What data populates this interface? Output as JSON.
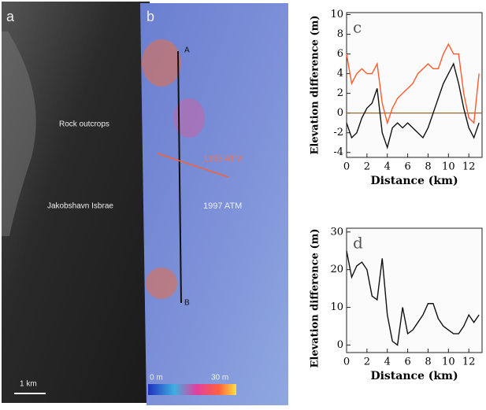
{
  "images": {
    "panel_a": {
      "label": "a",
      "annotations": [
        "Rock outcrops",
        "Jakobshavn Isbrae"
      ],
      "scale_bar": "1 km"
    },
    "panel_b": {
      "label": "b",
      "annotations": [
        "1995 ATM",
        "1997 ATM"
      ],
      "points": [
        "A",
        "B"
      ],
      "colorbar": [
        "0 m",
        "30 m"
      ]
    }
  },
  "chart_data": [
    {
      "type": "line",
      "panel_label": "c",
      "xlabel": "Distance (km)",
      "ylabel": "Elevation difference (m)",
      "x": [
        0,
        0.5,
        1,
        1.5,
        2,
        2.5,
        3,
        3.5,
        4,
        4.5,
        5,
        5.5,
        6,
        6.5,
        7,
        7.5,
        8,
        8.5,
        9,
        9.5,
        10,
        10.5,
        11,
        11.5,
        12,
        12.5,
        13
      ],
      "series": [
        {
          "color": "#ff5a2a",
          "values": [
            6,
            3,
            4,
            4.5,
            4,
            4,
            5,
            1,
            -1,
            0.5,
            1.5,
            2,
            2.5,
            3,
            4,
            4.5,
            5,
            4.5,
            4.5,
            6,
            7,
            6,
            6,
            2,
            -0.5,
            -1,
            4
          ]
        },
        {
          "color": "#111111",
          "values": [
            -1,
            -2.5,
            -2,
            -0.5,
            0.5,
            1,
            2.5,
            -2,
            -3.5,
            -1.5,
            -1,
            -1.5,
            -1,
            -1.5,
            -2,
            -2.5,
            -1.5,
            0,
            1.5,
            3,
            4,
            5,
            3,
            0.5,
            -1.5,
            -2.5,
            -1
          ]
        }
      ],
      "reference_line": 0,
      "xlim": [
        0,
        13.3
      ],
      "xticks": [
        0,
        2,
        4,
        6,
        8,
        10,
        12
      ],
      "ylim": [
        -4.5,
        10.2
      ],
      "yticks": [
        -4,
        -2,
        0,
        2,
        4,
        6,
        8,
        10
      ]
    },
    {
      "type": "line",
      "panel_label": "d",
      "xlabel": "Distance (km)",
      "ylabel": "Elevation difference (m)",
      "x": [
        0,
        0.5,
        1,
        1.5,
        2,
        2.5,
        3,
        3.5,
        4,
        4.5,
        5,
        5.5,
        6,
        6.5,
        7,
        7.5,
        8,
        8.5,
        9,
        9.5,
        10,
        10.5,
        11,
        11.5,
        12,
        12.5,
        13
      ],
      "series": [
        {
          "color": "#111111",
          "values": [
            25,
            18,
            21,
            22,
            20,
            13,
            12,
            23,
            8,
            1,
            0,
            10,
            3,
            4,
            6,
            8,
            11,
            11,
            7,
            5,
            4,
            3,
            3,
            5,
            8,
            6,
            8
          ]
        }
      ],
      "xlim": [
        0,
        13.3
      ],
      "xticks": [
        0,
        2,
        4,
        6,
        8,
        10,
        12
      ],
      "ylim": [
        -2,
        31
      ],
      "yticks": [
        0,
        10,
        20,
        30
      ]
    }
  ]
}
